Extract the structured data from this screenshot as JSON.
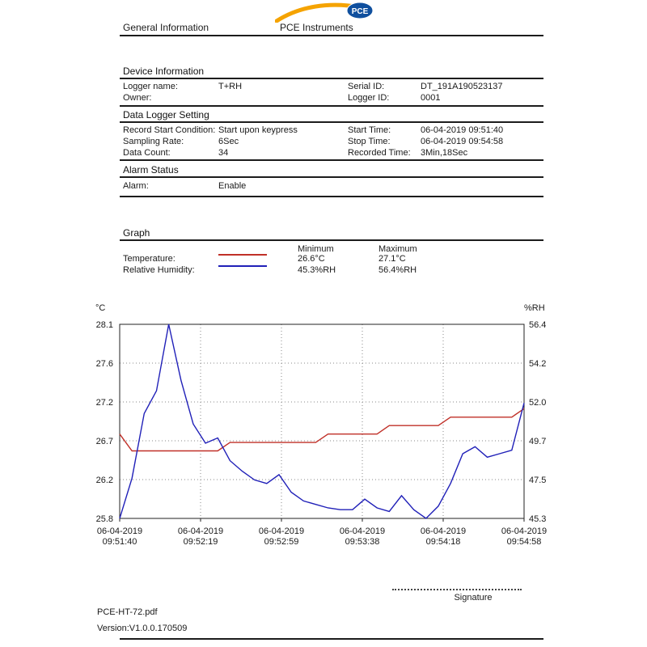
{
  "header": {
    "section_title": "General Information",
    "brand_name": "PCE Instruments",
    "logo_text": "PCE",
    "logo_colors": {
      "swoosh": "#f5a300",
      "oval": "#0f4f9e",
      "text": "#ffffff"
    }
  },
  "device_info": {
    "title": "Device Information",
    "rows": [
      {
        "label": "Logger name:",
        "value": "T+RH",
        "label2": "Serial ID:",
        "value2": "DT_191A190523137"
      },
      {
        "label": "Owner:",
        "value": "",
        "label2": "Logger ID:",
        "value2": "0001"
      }
    ]
  },
  "data_logger_setting": {
    "title": "Data Logger Setting",
    "rows": [
      {
        "label": "Record Start Condition:",
        "value": "Start upon keypress",
        "label2": "Start Time:",
        "value2": "06-04-2019 09:51:40"
      },
      {
        "label": "Sampling Rate:",
        "value": "6Sec",
        "label2": "Stop Time:",
        "value2": "06-04-2019 09:54:58"
      },
      {
        "label": "Data Count:",
        "value": "34",
        "label2": "Recorded Time:",
        "value2": "3Min,18Sec"
      }
    ]
  },
  "alarm_status": {
    "title": "Alarm Status",
    "row": {
      "label": "Alarm:",
      "value": "Enable"
    }
  },
  "graph_section": {
    "title": "Graph",
    "legend": {
      "min_header": "Minimum",
      "max_header": "Maximum",
      "rows": [
        {
          "label": "Temperature:",
          "color": "#c03028",
          "min": "26.6°C",
          "max": "27.1°C"
        },
        {
          "label": "Relative Humidity:",
          "color": "#2020b8",
          "min": "45.3%RH",
          "max": "56.4%RH"
        }
      ]
    }
  },
  "chart_data": {
    "type": "line",
    "grid": "dotted",
    "left_axis": {
      "label": "°C",
      "min": 25.8,
      "max": 28.1,
      "ticks": [
        "25.8",
        "26.2",
        "26.7",
        "27.2",
        "27.6",
        "28.1"
      ]
    },
    "right_axis": {
      "label": "%RH",
      "min": 45.3,
      "max": 56.4,
      "ticks": [
        "45.3",
        "47.5",
        "49.7",
        "52.0",
        "54.2",
        "56.4"
      ]
    },
    "x_ticks": [
      {
        "date": "06-04-2019",
        "time": "09:51:40"
      },
      {
        "date": "06-04-2019",
        "time": "09:52:19"
      },
      {
        "date": "06-04-2019",
        "time": "09:52:59"
      },
      {
        "date": "06-04-2019",
        "time": "09:53:38"
      },
      {
        "date": "06-04-2019",
        "time": "09:54:18"
      },
      {
        "date": "06-04-2019",
        "time": "09:54:58"
      }
    ],
    "series": [
      {
        "name": "temperature",
        "axis": "left",
        "unit": "°C",
        "color": "#c03028",
        "values": [
          26.8,
          26.6,
          26.6,
          26.6,
          26.6,
          26.6,
          26.6,
          26.6,
          26.6,
          26.7,
          26.7,
          26.7,
          26.7,
          26.7,
          26.7,
          26.7,
          26.7,
          26.8,
          26.8,
          26.8,
          26.8,
          26.8,
          26.9,
          26.9,
          26.9,
          26.9,
          26.9,
          27.0,
          27.0,
          27.0,
          27.0,
          27.0,
          27.0,
          27.1
        ]
      },
      {
        "name": "relative-humidity",
        "axis": "right",
        "unit": "%RH",
        "color": "#2020b8",
        "values": [
          45.3,
          47.6,
          51.3,
          52.6,
          56.4,
          53.2,
          50.7,
          49.6,
          49.9,
          48.6,
          48.0,
          47.5,
          47.3,
          47.8,
          46.8,
          46.3,
          46.1,
          45.9,
          45.8,
          45.8,
          46.4,
          45.9,
          45.7,
          46.6,
          45.8,
          45.3,
          46.0,
          47.3,
          49.0,
          49.4,
          48.8,
          49.0,
          49.2,
          51.9
        ]
      }
    ]
  },
  "footer": {
    "signature_label": "Signature",
    "file_name": "PCE-HT-72.pdf",
    "version": "Version:V1.0.0.170509"
  }
}
